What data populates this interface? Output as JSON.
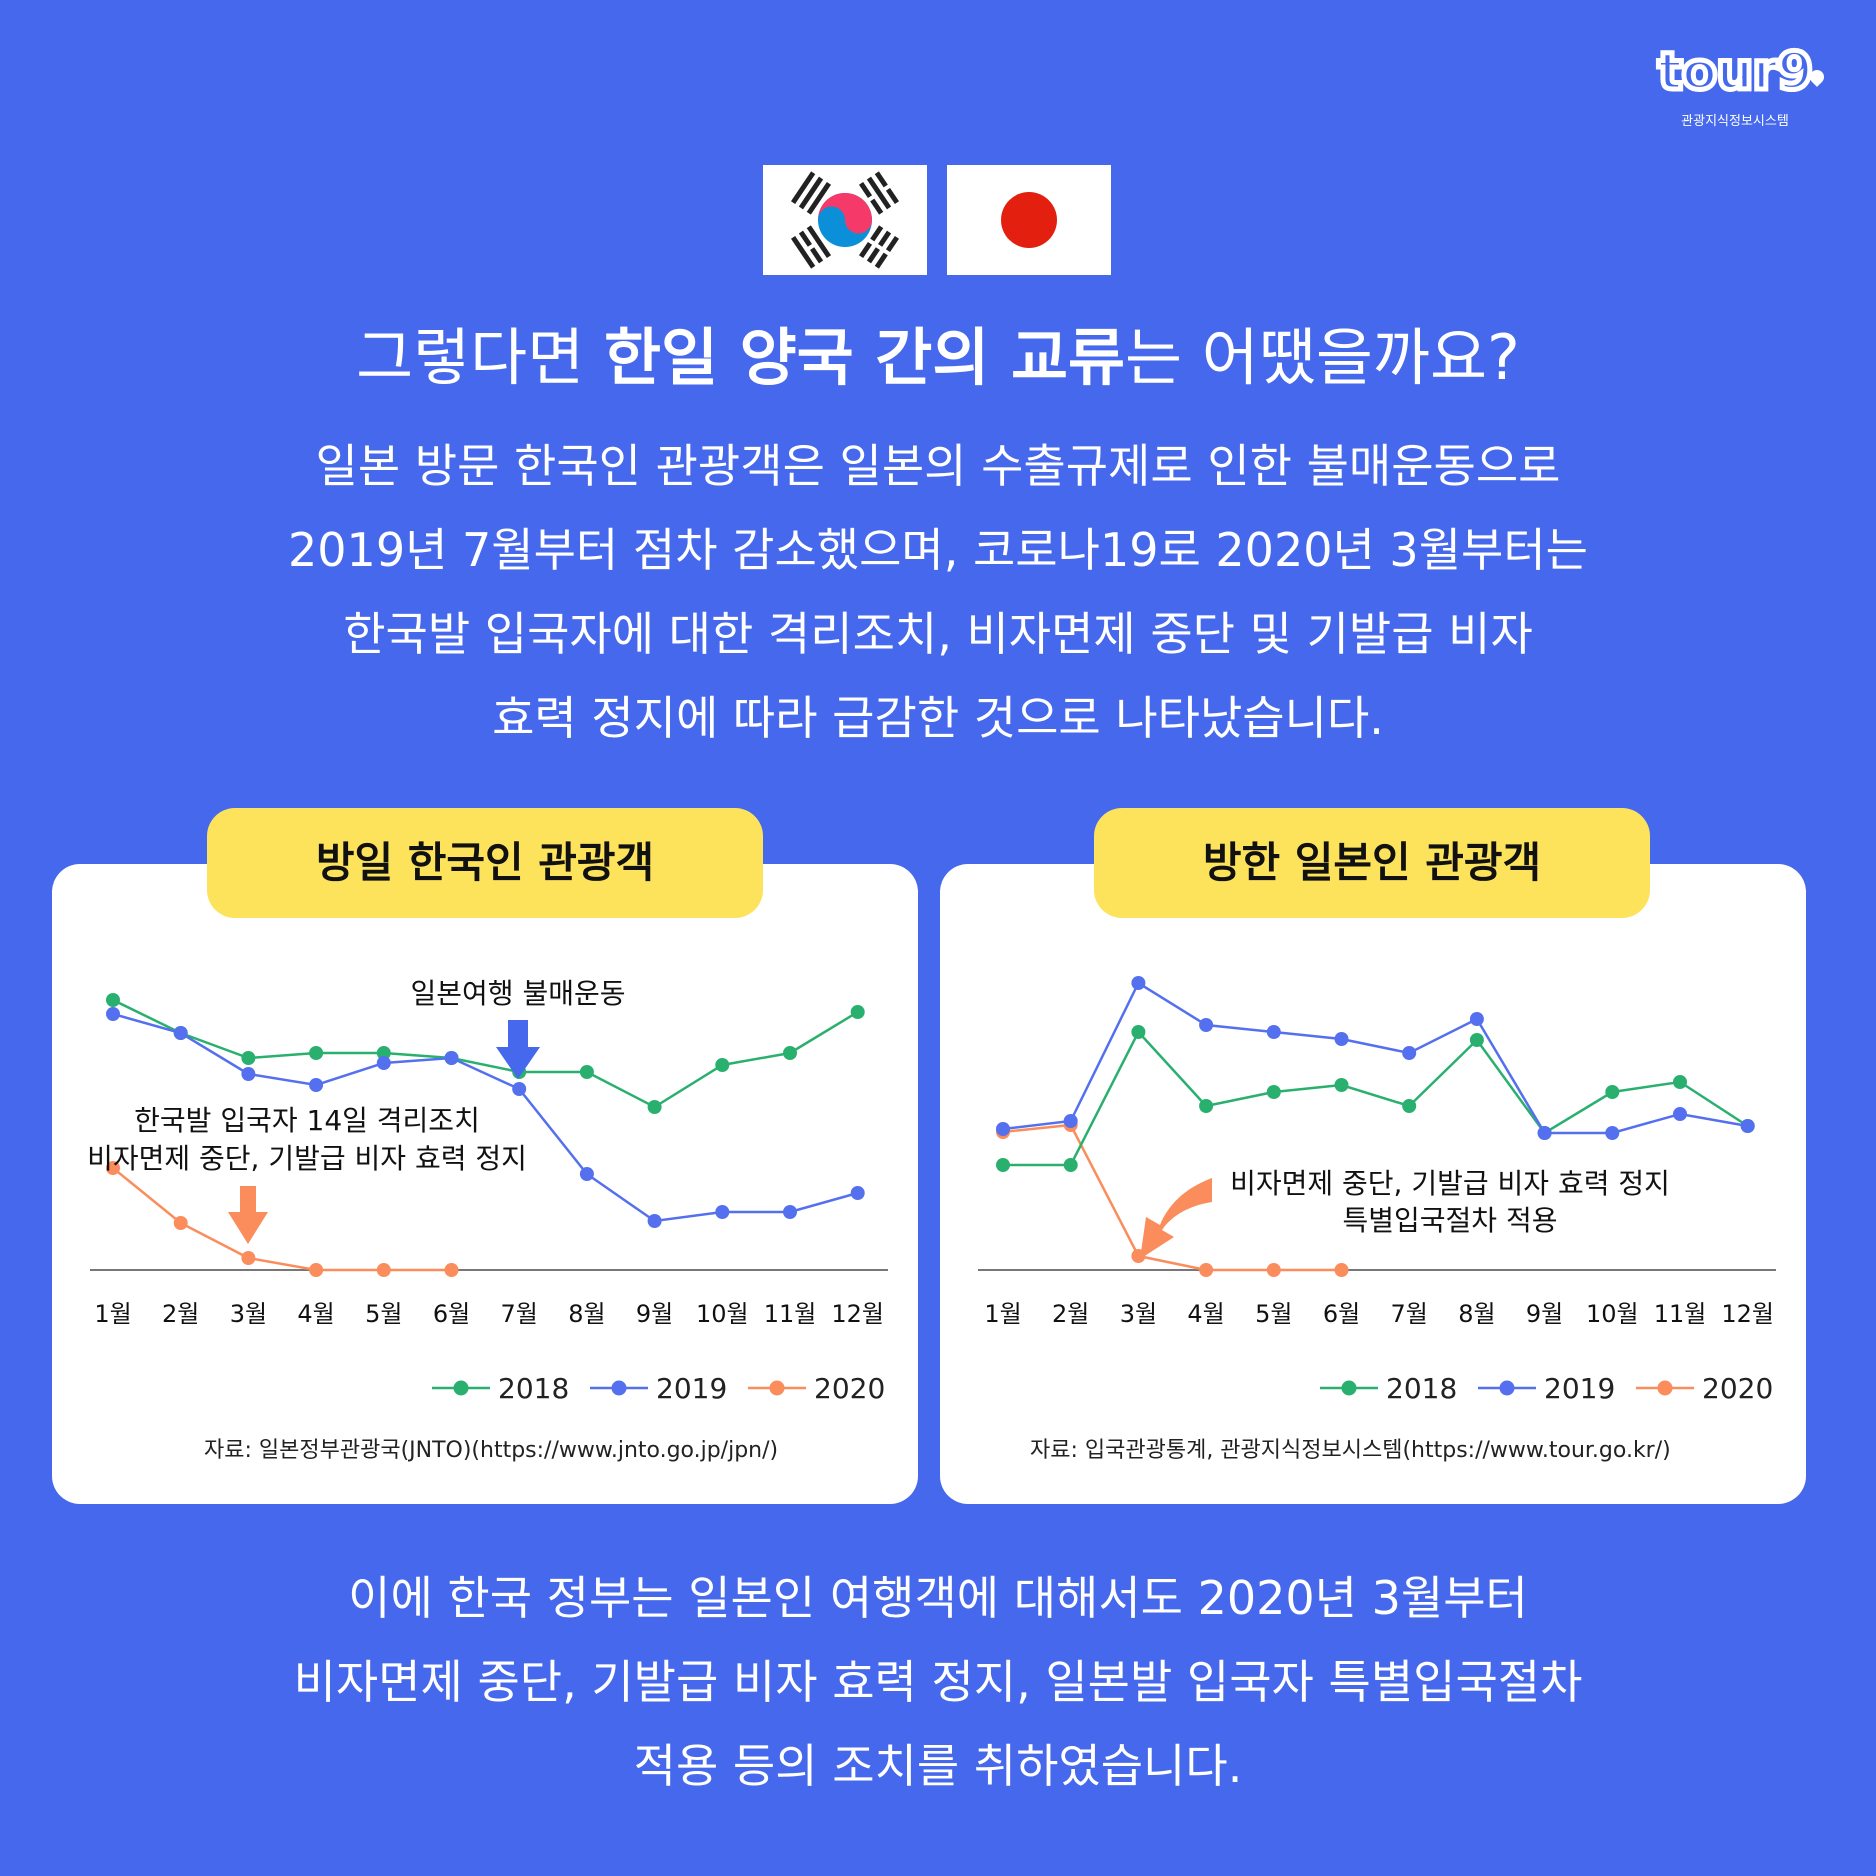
{
  "logo": {
    "word": "tour9",
    "subtitle": "관광지식정보시스템"
  },
  "flags": [
    {
      "name": "South Korea"
    },
    {
      "name": "Japan"
    }
  ],
  "title": {
    "pre": "그렇다면 ",
    "bold": "한일 양국 간의 교류",
    "post": "는 어땠을까요?"
  },
  "intro_lines": [
    "일본 방문 한국인 관광객은 일본의 수출규제로 인한 불매운동으로",
    "2019년 7월부터 점차 감소했으며, 코로나19로 2020년 3월부터는",
    "한국발 입국자에 대한 격리조치, 비자면제 중단 및 기발급 비자",
    "효력 정지에 따라 급감한 것으로 나타났습니다."
  ],
  "outro_lines": [
    "이에 한국 정부는 일본인 여행객에 대해서도 2020년 3월부터",
    "비자면제 중단, 기발급 비자 효력 정지, 일본발 입국자 특별입국절차",
    "적용 등의 조치를 취하였습니다."
  ],
  "colors": {
    "background": "#4568ec",
    "card_title_bg": "#fde35c",
    "s2018": "#2ab06e",
    "s2019": "#5470ee",
    "s2020": "#fb8c5c",
    "axis": "#777777"
  },
  "chart_data": [
    {
      "type": "line",
      "title": "방일 한국인 관광객",
      "categories": [
        "1월",
        "2월",
        "3월",
        "4월",
        "5월",
        "6월",
        "7월",
        "8월",
        "9월",
        "10월",
        "11월",
        "12월"
      ],
      "series": [
        {
          "name": "2018",
          "values": [
            270,
            237,
            212,
            217,
            217,
            212,
            198,
            198,
            163,
            205,
            217,
            258
          ]
        },
        {
          "name": "2019",
          "values": [
            256,
            237,
            196,
            185,
            207,
            212,
            181,
            96,
            49,
            58,
            58,
            77
          ]
        },
        {
          "name": "2020",
          "values": [
            102,
            47,
            12,
            0,
            0,
            0
          ]
        }
      ],
      "annotations": [
        {
          "text": "일본여행 불매운동",
          "at": "7월",
          "series": "2019"
        },
        {
          "text": [
            "한국발 입국자 14일 격리조치",
            "비자면제 중단, 기발급 비자 효력 정지"
          ],
          "at": "3월",
          "series": "2020"
        }
      ],
      "legend": [
        "2018",
        "2019",
        "2020"
      ],
      "legend_position": "bottom-right",
      "source": "자료: 일본정부관광국(JNTO)(https://www.jnto.go.jp/jpn/)",
      "units": "relative (no y-axis shown)",
      "grid": false
    },
    {
      "type": "line",
      "title": "방한 일본인 관광객",
      "categories": [
        "1월",
        "2월",
        "3월",
        "4월",
        "5월",
        "6월",
        "7월",
        "8월",
        "9월",
        "10월",
        "11월",
        "12월"
      ],
      "series": [
        {
          "name": "2018",
          "values": [
            105,
            105,
            238,
            164,
            178,
            185,
            164,
            230,
            137,
            178,
            188,
            144
          ]
        },
        {
          "name": "2019",
          "values": [
            141,
            149,
            287,
            245,
            238,
            231,
            217,
            251,
            137,
            137,
            156,
            144
          ]
        },
        {
          "name": "2020",
          "values": [
            138,
            145,
            14,
            0,
            0,
            0
          ]
        }
      ],
      "annotations": [
        {
          "text": [
            "비자면제 중단, 기발급 비자 효력 정지",
            "특별입국절차 적용"
          ],
          "at": "3월",
          "series": "2020"
        }
      ],
      "legend": [
        "2018",
        "2019",
        "2020"
      ],
      "legend_position": "bottom-right",
      "source": "자료: 입국관광통계, 관광지식정보시스템(https://www.tour.go.kr/)",
      "units": "relative (no y-axis shown)",
      "grid": false
    }
  ]
}
